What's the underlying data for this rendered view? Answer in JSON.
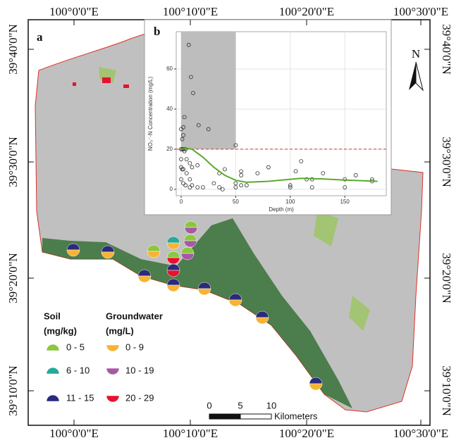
{
  "map": {
    "panel_label": "a",
    "top_labels": [
      "100°0'0\"E",
      "100°10'0\"E",
      "100°20'0\"E",
      "100°30'0\"E"
    ],
    "bottom_labels": [
      "100°0'0\"E",
      "100°10'0\"E",
      "100°20'0\"E",
      "100°30'0\"E"
    ],
    "left_labels": [
      "39°40'0\"N",
      "39°30'0\"N",
      "39°20'0\"N",
      "39°10'0\"N"
    ],
    "right_labels": [
      "39°40'0\"N",
      "39°30'0\"N",
      "39°20'0\"N",
      "39°10'0\"N"
    ],
    "north": "N",
    "legend": {
      "soil_title": "Soil",
      "soil_unit": "(mg/kg)",
      "groundwater_title": "Groundwater",
      "groundwater_unit": "(mg/L)",
      "soil": [
        {
          "label": "0 - 5",
          "color": "#8dc63f"
        },
        {
          "label": "6 - 10",
          "color": "#27a99a"
        },
        {
          "label": "11 - 15",
          "color": "#2b2a7c"
        }
      ],
      "groundwater": [
        {
          "label": "0 - 9",
          "color": "#f6b334"
        },
        {
          "label": "10 - 19",
          "color": "#a65aa3"
        },
        {
          "label": "20 - 29",
          "color": "#e8112d"
        }
      ]
    },
    "scale": {
      "ticks": [
        0,
        5,
        10
      ],
      "unit": "Kilometers"
    }
  },
  "chart_data": {
    "type": "scatter",
    "panel_label": "b",
    "xlabel": "Depth (m)",
    "ylabel": "NO₃⁻-N Concentration (mg/L)",
    "x": [
      7,
      9,
      11,
      16,
      25,
      0,
      3,
      2,
      1,
      2,
      0,
      1,
      2,
      3,
      4,
      50,
      0,
      5,
      8,
      10,
      15,
      0,
      1,
      2,
      5,
      8,
      0,
      2,
      4,
      8,
      10,
      15,
      20,
      30,
      35,
      38,
      40,
      50,
      50,
      55,
      55,
      60,
      70,
      80,
      100,
      100,
      105,
      110,
      115,
      130,
      150,
      150,
      160,
      175,
      175,
      120,
      120,
      55,
      35
    ],
    "values": [
      72,
      56,
      48,
      32,
      30,
      30,
      36,
      31,
      25,
      27,
      20,
      20,
      20,
      19,
      20,
      22,
      15,
      15,
      13,
      11,
      12,
      11,
      10,
      10,
      8,
      5,
      5,
      3,
      2,
      1,
      2,
      1,
      1,
      3,
      1,
      0,
      10,
      1,
      3,
      7,
      2,
      2,
      8,
      11,
      1,
      2,
      9,
      14,
      5,
      8,
      5,
      1,
      7,
      5,
      4,
      1,
      5,
      9,
      8
    ],
    "point_color": "#333333",
    "fit": {
      "x": [
        0,
        5,
        10,
        20,
        30,
        40,
        50,
        60,
        80,
        100,
        110,
        130,
        150,
        165,
        180
      ],
      "values": [
        20,
        20.5,
        20,
        16,
        11,
        7,
        4.5,
        3.5,
        4,
        5,
        5.5,
        5.2,
        4.6,
        4.3,
        4
      ],
      "color": "#5aaa2c"
    },
    "threshold": 20,
    "threshold_color": "#e03030",
    "shade_x": [
      0,
      50
    ],
    "shade_color": "#bdbdbd",
    "xlim": [
      -4.5,
      188
    ],
    "ylim": [
      -3.2,
      78.6
    ],
    "xticks": [
      0,
      50,
      100,
      150
    ],
    "yticks": [
      0,
      20,
      40,
      60
    ],
    "grid": true
  }
}
